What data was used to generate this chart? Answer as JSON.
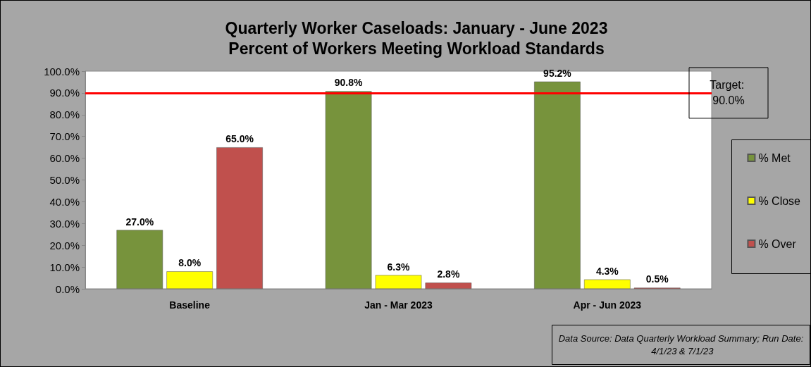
{
  "chart_data": {
    "type": "bar",
    "title": "Quarterly Worker Caseloads: January - June 2023",
    "subtitle": "Percent of Workers Meeting Workload Standards",
    "categories": [
      "Baseline",
      "Jan - Mar 2023",
      "Apr - Jun 2023"
    ],
    "series": [
      {
        "name": "% Met",
        "color": "#77933c",
        "values": [
          27.0,
          90.8,
          95.2
        ],
        "value_labels": [
          "27.0%",
          "90.8%",
          "95.2%"
        ]
      },
      {
        "name": "% Close",
        "color": "#ffff00",
        "values": [
          8.0,
          6.3,
          4.3
        ],
        "value_labels": [
          "8.0%",
          "6.3%",
          "4.3%"
        ]
      },
      {
        "name": "% Over",
        "color": "#c0504d",
        "values": [
          65.0,
          2.8,
          0.5
        ],
        "value_labels": [
          "65.0%",
          "2.8%",
          "0.5%"
        ]
      }
    ],
    "ylim": [
      0,
      100
    ],
    "yticks": [
      {
        "value": 0,
        "label": "0.0%"
      },
      {
        "value": 10,
        "label": "10.0%"
      },
      {
        "value": 20,
        "label": "20.0%"
      },
      {
        "value": 30,
        "label": "30.0%"
      },
      {
        "value": 40,
        "label": "40.0%"
      },
      {
        "value": 50,
        "label": "50.0%"
      },
      {
        "value": 60,
        "label": "60.0%"
      },
      {
        "value": 70,
        "label": "70.0%"
      },
      {
        "value": 80,
        "label": "80.0%"
      },
      {
        "value": 90,
        "label": "90.0%"
      },
      {
        "value": 100,
        "label": "100.0%"
      }
    ],
    "ref_lines": [
      {
        "axis": "y",
        "value": 90,
        "label": "Target: 90.0%",
        "color": "#ff0000"
      }
    ],
    "annotations": [
      "Data Source: Data Quarterly Workload Summary; Run Date: 4/1/23 & 7/1/23"
    ],
    "grid": false,
    "legend": "right"
  }
}
